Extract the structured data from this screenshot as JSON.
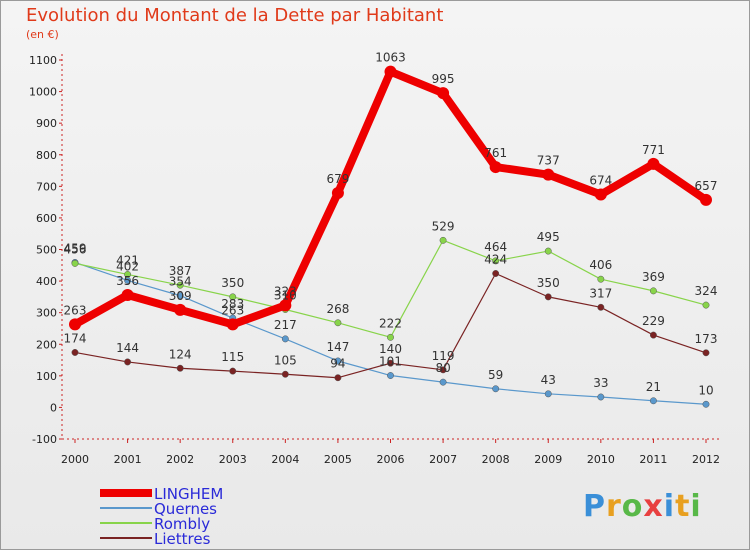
{
  "title": "Evolution du Montant de la Dette par Habitant",
  "subtitle": "(en €)",
  "logo": "Proxiti",
  "chart_data": {
    "type": "line",
    "x": [
      2000,
      2001,
      2002,
      2003,
      2004,
      2005,
      2006,
      2007,
      2008,
      2009,
      2010,
      2011,
      2012
    ],
    "ylim": [
      -100,
      1100
    ],
    "yticks": [
      -100,
      0,
      100,
      200,
      300,
      400,
      500,
      600,
      700,
      800,
      900,
      1000,
      1100
    ],
    "grid": false,
    "legend_position": "bottom-left",
    "series": [
      {
        "name": "LINGHEM",
        "color": "#ee0000",
        "values": [
          263,
          356,
          309,
          263,
          323,
          679,
          1063,
          995,
          761,
          737,
          674,
          771,
          657
        ],
        "labels": [
          "263",
          "356",
          "309",
          "263",
          "323",
          "679",
          "1063",
          "995",
          "761",
          "737",
          "674",
          "771",
          "657"
        ]
      },
      {
        "name": "Quernes",
        "color": "#5a98cc",
        "values": [
          459,
          402,
          354,
          283,
          217,
          147,
          101,
          80,
          59,
          43,
          33,
          21,
          10
        ],
        "labels": [
          "459",
          "402",
          "354",
          "283",
          "217",
          "147",
          "101",
          "80",
          "59",
          "43",
          "33",
          "21",
          "10"
        ]
      },
      {
        "name": "Rombly",
        "color": "#88d44a",
        "values": [
          456,
          421,
          387,
          350,
          310,
          268,
          222,
          529,
          464,
          495,
          406,
          369,
          324
        ],
        "labels": [
          "456",
          "421",
          "387",
          "350",
          "310",
          "268",
          "222",
          "529",
          "464",
          "495",
          "406",
          "369",
          "324"
        ]
      },
      {
        "name": "Liettres",
        "color": "#7a2323",
        "values": [
          174,
          144,
          124,
          115,
          105,
          94,
          140,
          119,
          424,
          350,
          317,
          229,
          173
        ],
        "labels": [
          "174",
          "144",
          "124",
          "115",
          "105",
          "94",
          "140",
          "119",
          "424",
          "350",
          "317",
          "229",
          "173"
        ]
      }
    ]
  }
}
